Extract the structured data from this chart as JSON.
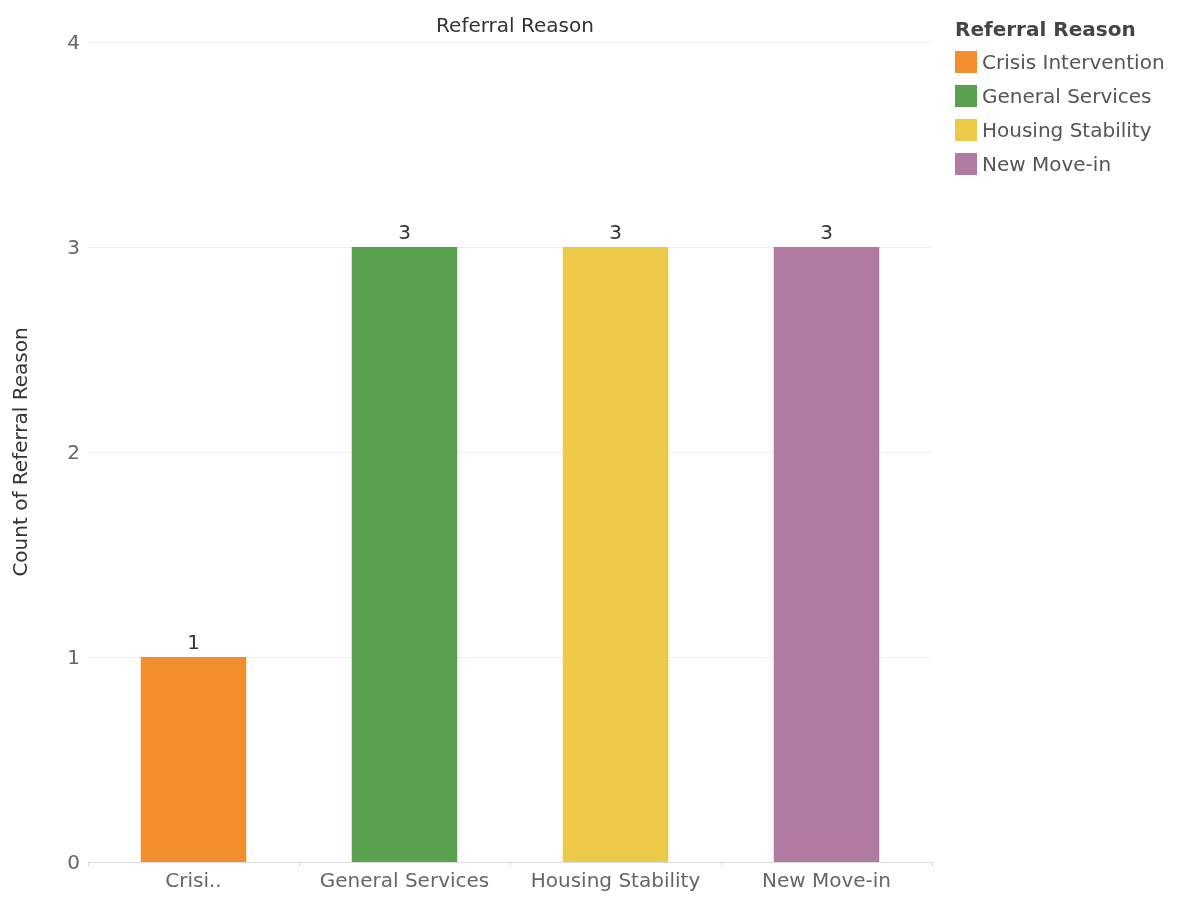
{
  "chart_data": {
    "type": "bar",
    "title": "Referral Reason",
    "ylabel": "Count of Referral Reason",
    "legend_title": "Referral Reason",
    "categories": [
      "Crisi..",
      "General Services",
      "Housing Stability",
      "New Move-in"
    ],
    "series": [
      {
        "name": "Crisis Intervention",
        "color": "#f28e2b",
        "values": [
          1,
          null,
          null,
          null
        ]
      },
      {
        "name": "General Services",
        "color": "#59a14f",
        "values": [
          null,
          3,
          null,
          null
        ]
      },
      {
        "name": "Housing Stability",
        "color": "#edc948",
        "values": [
          null,
          null,
          3,
          null
        ]
      },
      {
        "name": "New Move-in",
        "color": "#b07aa1",
        "values": [
          null,
          null,
          null,
          3
        ]
      }
    ],
    "stacked": true,
    "data_labels": true,
    "ylim": [
      0,
      4
    ],
    "yticks": [
      0,
      1,
      2,
      3,
      4
    ],
    "grid": "y",
    "legend": "top right"
  }
}
